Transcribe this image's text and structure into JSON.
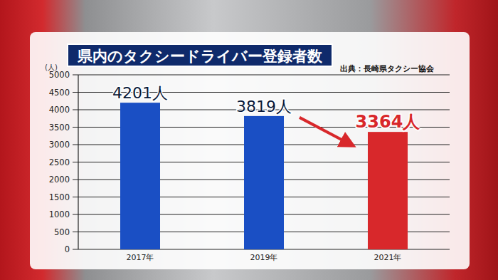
{
  "chart_data": {
    "type": "bar",
    "title": "県内のタクシードライバー登録者数",
    "source": "出典：長崎県タクシー協会",
    "y_label": "(人)",
    "categories": [
      "2017年",
      "2019年",
      "2021年"
    ],
    "values": [
      4201,
      3819,
      3364
    ],
    "value_labels": [
      "4201人",
      "3819人",
      "3364人"
    ],
    "colors": [
      "#1a4fc4",
      "#1a4fc4",
      "#d8282b"
    ],
    "ylim": [
      0,
      5000
    ],
    "yticks": [
      0,
      500,
      1000,
      1500,
      2000,
      2500,
      3000,
      3500,
      4000,
      4500,
      5000
    ],
    "grid": true,
    "data_labels": true
  }
}
